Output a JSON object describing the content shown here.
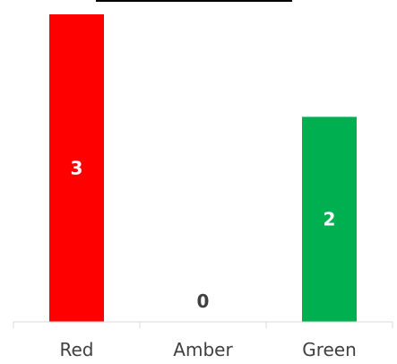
{
  "chart_data": {
    "type": "bar",
    "title": "",
    "xlabel": "",
    "ylabel": "",
    "categories": [
      "Red",
      "Amber",
      "Green"
    ],
    "values": [
      3,
      0,
      2
    ],
    "ylim": [
      0,
      3.0
    ],
    "grid": false,
    "legend": "none",
    "colors": [
      "#ff0000",
      "#ffbf00",
      "#00b050"
    ],
    "axis_color": "#d9d9d9",
    "label_colors": {
      "inside_bar": "#ffffff",
      "zero_value": "#404040"
    }
  }
}
